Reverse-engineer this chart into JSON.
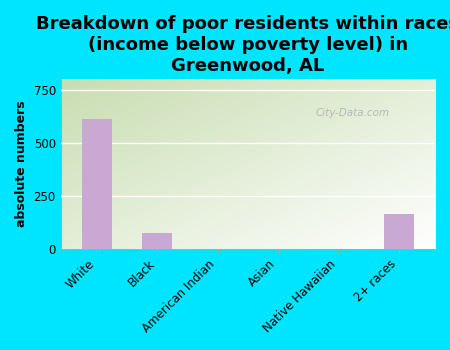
{
  "title": "Breakdown of poor residents within races\n(income below poverty level) in\nGreenwood, AL",
  "categories": [
    "White",
    "Black",
    "American Indian",
    "Asian",
    "Native Hawaiian",
    "2+ races"
  ],
  "values": [
    610,
    75,
    0,
    0,
    0,
    165
  ],
  "bar_color": "#c9a8d4",
  "ylabel": "absolute numbers",
  "ylim": [
    0,
    800
  ],
  "yticks": [
    0,
    250,
    500,
    750
  ],
  "background_color": "#00e5ff",
  "plot_bg_topleft": "#c8ddb0",
  "plot_bg_bottomright": "#ffffff",
  "watermark": "City-Data.com",
  "title_fontsize": 13,
  "axis_label_fontsize": 9,
  "tick_fontsize": 8.5
}
